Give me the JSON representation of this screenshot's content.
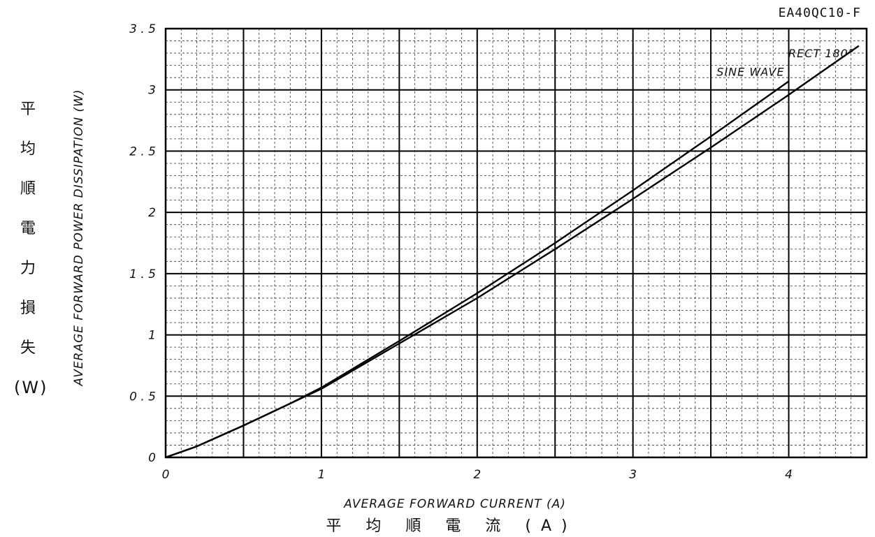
{
  "chart_data": {
    "type": "line",
    "model": "EA40QC10-F",
    "xlabel_en": "AVERAGE FORWARD CURRENT (A)",
    "xlabel_jp": "平 均 順 電 流 (A)",
    "ylabel_en": "AVERAGE FORWARD POWER DISSIPATION (W)",
    "ylabel_jp_chars": [
      "平",
      "均",
      "順",
      "電",
      "力",
      "損",
      "失"
    ],
    "ylabel_jp_unit": "(W)",
    "xlim": [
      0,
      4.5
    ],
    "ylim": [
      0,
      3.5
    ],
    "x_ticks": [
      "0",
      "1",
      "2",
      "3",
      "4"
    ],
    "y_ticks": [
      "0",
      "0.5",
      "1",
      "1.5",
      "2",
      "2.5",
      "3",
      "3.5"
    ],
    "grid": true,
    "series": [
      {
        "name": "RECT 180°",
        "x": [
          0,
          0.2,
          0.5,
          0.8,
          1.0,
          1.5,
          2.0,
          2.5,
          3.0,
          3.5,
          4.0,
          4.45
        ],
        "y": [
          0,
          0.09,
          0.26,
          0.44,
          0.56,
          0.93,
          1.3,
          1.7,
          2.11,
          2.53,
          2.96,
          3.36
        ]
      },
      {
        "name": "SINE WAVE",
        "x": [
          0,
          0.2,
          0.5,
          0.8,
          1.0,
          1.5,
          2.0,
          2.5,
          3.0,
          3.5,
          4.0
        ],
        "y": [
          0,
          0.09,
          0.26,
          0.44,
          0.57,
          0.95,
          1.34,
          1.75,
          2.18,
          2.62,
          3.07
        ]
      }
    ]
  }
}
